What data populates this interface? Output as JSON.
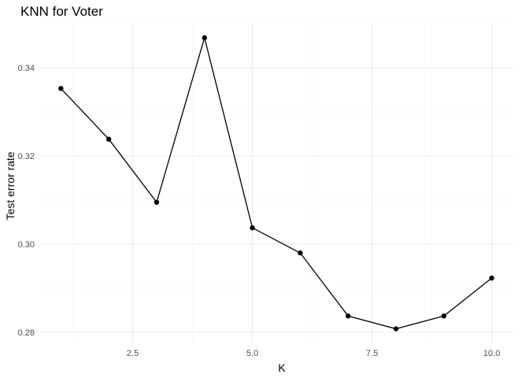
{
  "chart_data": {
    "type": "line",
    "title": "KNN for Voter",
    "xlabel": "K",
    "ylabel": "Test error rate",
    "x": [
      1,
      2,
      3,
      4,
      5,
      6,
      7,
      8,
      9,
      10
    ],
    "series": [
      {
        "values": [
          0.3353,
          0.3238,
          0.3095,
          0.3468,
          0.3037,
          0.298,
          0.2837,
          0.2808,
          0.2837,
          0.2923
        ]
      }
    ],
    "xlim": [
      0.55,
      10.45
    ],
    "ylim": [
      0.2775,
      0.35
    ],
    "x_ticks": [
      2.5,
      5.0,
      7.5,
      10.0
    ],
    "x_tick_labels": [
      "2.5",
      "5.0",
      "7.5",
      "10.0"
    ],
    "y_ticks": [
      0.28,
      0.3,
      0.32,
      0.34
    ],
    "y_tick_labels": [
      "0.28",
      "0.30",
      "0.32",
      "0.34"
    ],
    "grid": true,
    "line_color": "#000000",
    "point_color": "#000000"
  }
}
